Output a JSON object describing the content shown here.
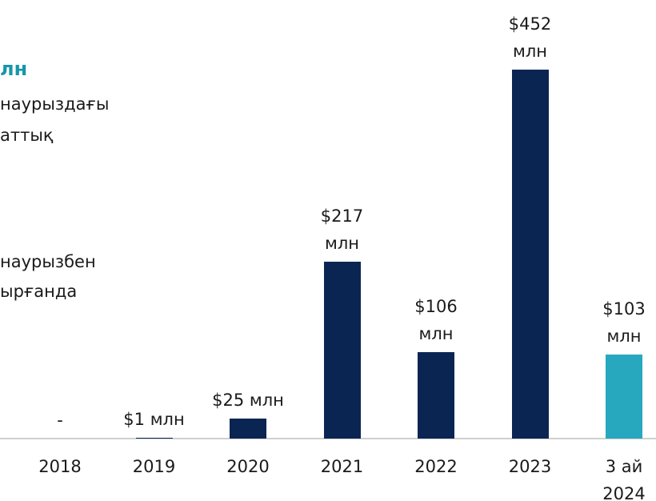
{
  "side_text": {
    "title": "лн",
    "lines": [
      "наурыздағы",
      "аттық",
      "наурызбен",
      "ырғанда"
    ]
  },
  "chart_data": {
    "type": "bar",
    "categories": [
      "2018",
      "2019",
      "2020",
      "2021",
      "2022",
      "2023",
      "3 ай 2024"
    ],
    "values": [
      0,
      1,
      25,
      217,
      106,
      452,
      103
    ],
    "value_labels": [
      "-",
      "$1 млн",
      "$25 млн",
      "$217 млн",
      "$106 млн",
      "$452 млн",
      "$103 млн"
    ],
    "colors": [
      "#0b2553",
      "#0b2553",
      "#0b2553",
      "#0b2553",
      "#0b2553",
      "#0b2553",
      "#27a8be"
    ]
  }
}
